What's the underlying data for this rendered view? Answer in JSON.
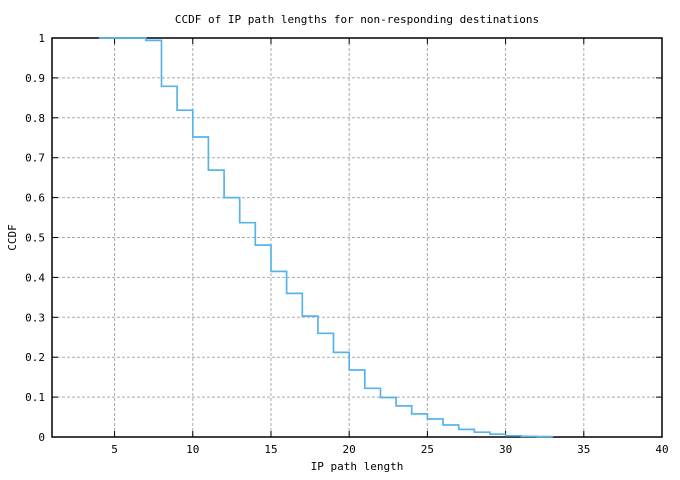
{
  "colors": {
    "background": "#ffffff",
    "border": "#000000",
    "grid": "#ababab",
    "text": "#000000",
    "line": "#56b4e9"
  },
  "chart_data": {
    "type": "line",
    "subtype": "ccdf-step",
    "step_mode": "post",
    "title": "CCDF of IP path lengths for non-responding destinations",
    "xlabel": "IP path length",
    "ylabel": "CCDF",
    "xlim": [
      1,
      40
    ],
    "ylim": [
      0,
      1
    ],
    "grid": "dashed",
    "legend_position": "none",
    "x_ticks": [
      {
        "v": 5,
        "label": "5"
      },
      {
        "v": 10,
        "label": "10"
      },
      {
        "v": 15,
        "label": "15"
      },
      {
        "v": 20,
        "label": "20"
      },
      {
        "v": 25,
        "label": "25"
      },
      {
        "v": 30,
        "label": "30"
      },
      {
        "v": 35,
        "label": "35"
      },
      {
        "v": 40,
        "label": "40"
      }
    ],
    "y_ticks": [
      {
        "v": 0,
        "label": "0"
      },
      {
        "v": 0.1,
        "label": "0.1"
      },
      {
        "v": 0.2,
        "label": "0.2"
      },
      {
        "v": 0.3,
        "label": "0.3"
      },
      {
        "v": 0.4,
        "label": "0.4"
      },
      {
        "v": 0.5,
        "label": "0.5"
      },
      {
        "v": 0.6,
        "label": "0.6"
      },
      {
        "v": 0.7,
        "label": "0.7"
      },
      {
        "v": 0.8,
        "label": "0.8"
      },
      {
        "v": 0.9,
        "label": "0.9"
      },
      {
        "v": 1,
        "label": "1"
      }
    ],
    "series": [
      {
        "name": "ccdf-ip-path-length",
        "color": "#56b4e9",
        "points": [
          [
            4,
            1.0
          ],
          [
            7,
            0.994
          ],
          [
            8,
            0.879
          ],
          [
            9,
            0.819
          ],
          [
            10,
            0.752
          ],
          [
            11,
            0.669
          ],
          [
            12,
            0.6
          ],
          [
            13,
            0.537
          ],
          [
            14,
            0.481
          ],
          [
            15,
            0.415
          ],
          [
            16,
            0.36
          ],
          [
            17,
            0.303
          ],
          [
            18,
            0.26
          ],
          [
            19,
            0.212
          ],
          [
            20,
            0.168
          ],
          [
            21,
            0.122
          ],
          [
            22,
            0.099
          ],
          [
            23,
            0.078
          ],
          [
            24,
            0.058
          ],
          [
            25,
            0.045
          ],
          [
            26,
            0.03
          ],
          [
            27,
            0.019
          ],
          [
            28,
            0.012
          ],
          [
            29,
            0.007
          ],
          [
            30,
            0.003
          ],
          [
            31,
            0.0015
          ],
          [
            32,
            0.001
          ],
          [
            33,
            0.0
          ]
        ]
      }
    ]
  }
}
